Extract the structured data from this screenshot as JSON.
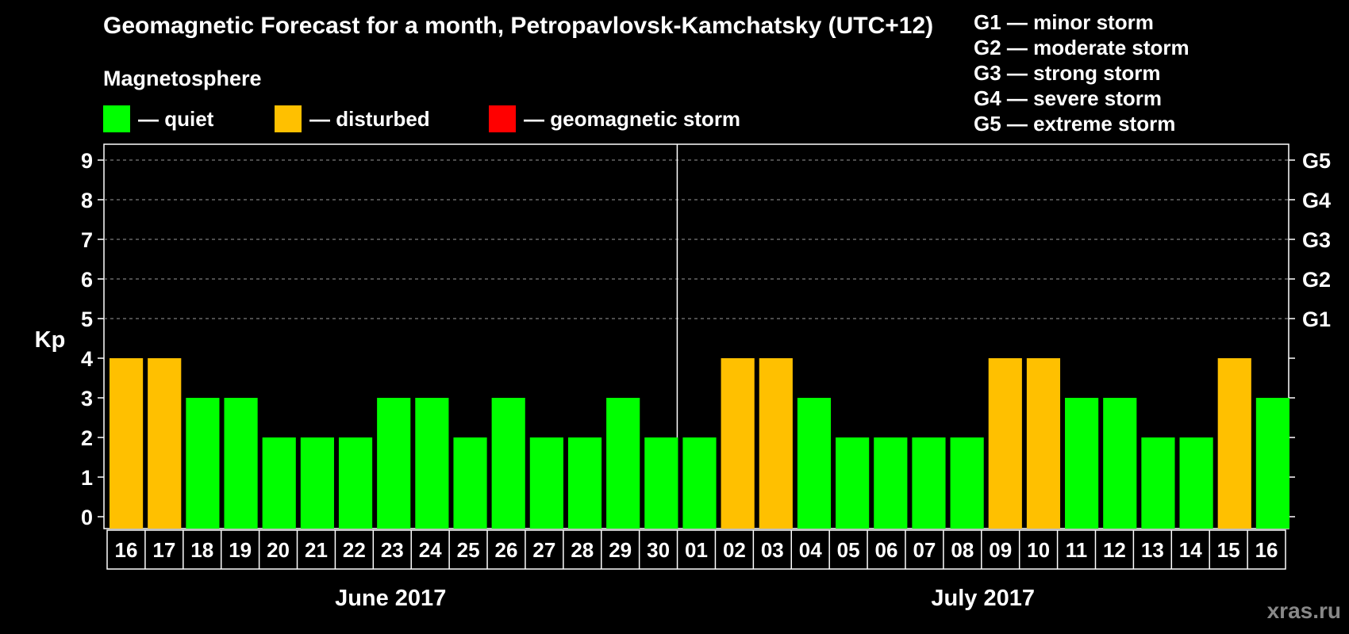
{
  "title": "Geomagnetic Forecast for a month, Petropavlovsk-Kamchatsky (UTC+12)",
  "legend": {
    "heading": "Magnetosphere",
    "items": [
      {
        "label": "— quiet",
        "color": "#00ff00"
      },
      {
        "label": "— disturbed",
        "color": "#ffc000"
      },
      {
        "label": "— geomagnetic storm",
        "color": "#ff0000"
      }
    ]
  },
  "storm_scale": [
    "G1 — minor storm",
    "G2 — moderate storm",
    "G3 — strong storm",
    "G4 — severe storm",
    "G5 — extreme storm"
  ],
  "watermark": "xras.ru",
  "chart_data": {
    "type": "bar",
    "title": "Geomagnetic Forecast for a month, Petropavlovsk-Kamchatsky (UTC+12)",
    "xlabel": "",
    "ylabel": "Kp",
    "ylim": [
      0,
      9
    ],
    "yticks": [
      "0",
      "1",
      "2",
      "3",
      "4",
      "5",
      "6",
      "7",
      "8",
      "9"
    ],
    "right_ticks": [
      {
        "kp": 5,
        "label": "G1"
      },
      {
        "kp": 6,
        "label": "G2"
      },
      {
        "kp": 7,
        "label": "G3"
      },
      {
        "kp": 8,
        "label": "G4"
      },
      {
        "kp": 9,
        "label": "G5"
      }
    ],
    "grid": "dashed horizontal from Kp 5 to 9",
    "categories": [
      "16",
      "17",
      "18",
      "19",
      "20",
      "21",
      "22",
      "23",
      "24",
      "25",
      "26",
      "27",
      "28",
      "29",
      "30",
      "01",
      "02",
      "03",
      "04",
      "05",
      "06",
      "07",
      "08",
      "09",
      "10",
      "11",
      "12",
      "13",
      "14",
      "15",
      "16"
    ],
    "values": [
      4,
      4,
      3,
      3,
      2,
      2,
      2,
      3,
      3,
      2,
      3,
      2,
      2,
      3,
      2,
      2,
      4,
      4,
      3,
      2,
      2,
      2,
      2,
      4,
      4,
      3,
      3,
      2,
      2,
      4,
      3
    ],
    "bar_colors": {
      "quiet": "#00ff00",
      "disturbed": "#ffc000",
      "storm": "#ff0000"
    },
    "months": [
      {
        "label": "June 2017",
        "days": 15
      },
      {
        "label": "July 2017",
        "days": 16
      }
    ]
  }
}
